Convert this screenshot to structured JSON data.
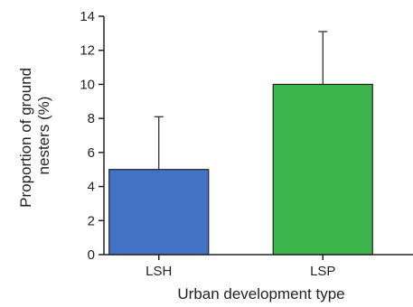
{
  "chart_data": {
    "type": "bar",
    "categories": [
      "LSH",
      "LSP"
    ],
    "values": [
      5,
      10
    ],
    "errors_upper": [
      8.1,
      13.1
    ],
    "bar_colors": [
      "#4472c4",
      "#3cb54a"
    ],
    "xlabel": "Urban development type",
    "ylabel": "Proportion of ground nesters (%)",
    "ylabel_lines": [
      "Proportion of ground",
      "nesters (%)"
    ],
    "ylim": [
      0,
      14
    ],
    "yticks": [
      0,
      2,
      4,
      6,
      8,
      10,
      12,
      14
    ],
    "grid": false,
    "legend": "none"
  }
}
